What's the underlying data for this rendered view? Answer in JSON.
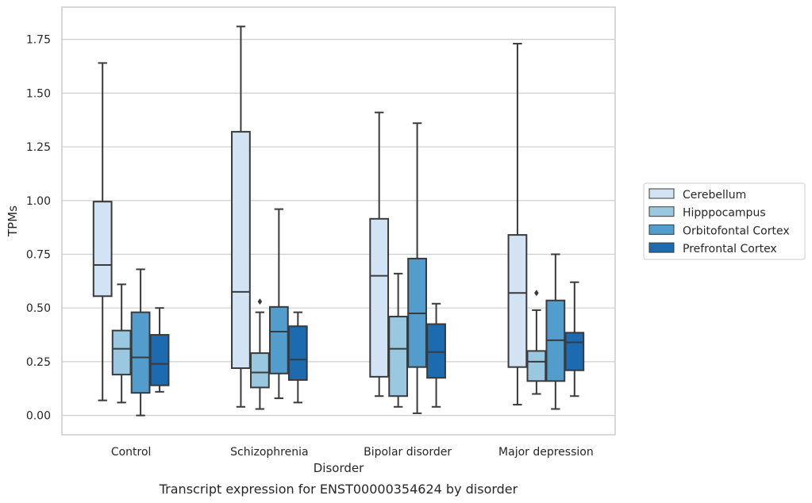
{
  "chart_data": {
    "type": "box",
    "caption": "Transcript expression for ENST00000354624 by disorder",
    "xlabel": "Disorder",
    "ylabel": "TPMs",
    "ylim": [
      -0.09,
      1.9
    ],
    "yticks": [
      "0.00",
      "0.25",
      "0.50",
      "0.75",
      "1.00",
      "1.25",
      "1.50",
      "1.75"
    ],
    "grid": "horizontal",
    "legend_position": "right",
    "categories": [
      "Control",
      "Schizophrenia",
      "Bipolar disorder",
      "Major depression"
    ],
    "series": [
      {
        "name": "Cerebellum",
        "color": "#d2e3f3",
        "boxes": [
          {
            "whislo": 0.07,
            "q1": 0.555,
            "med": 0.7,
            "q3": 0.995,
            "whishi": 1.64,
            "fliers": []
          },
          {
            "whislo": 0.04,
            "q1": 0.22,
            "med": 0.575,
            "q3": 1.32,
            "whishi": 1.81,
            "fliers": []
          },
          {
            "whislo": 0.09,
            "q1": 0.18,
            "med": 0.65,
            "q3": 0.915,
            "whishi": 1.41,
            "fliers": []
          },
          {
            "whislo": 0.05,
            "q1": 0.225,
            "med": 0.57,
            "q3": 0.84,
            "whishi": 1.73,
            "fliers": []
          }
        ]
      },
      {
        "name": "Hipppocampus",
        "color": "#9ac8e0",
        "boxes": [
          {
            "whislo": 0.06,
            "q1": 0.19,
            "med": 0.31,
            "q3": 0.395,
            "whishi": 0.61,
            "fliers": []
          },
          {
            "whislo": 0.03,
            "q1": 0.13,
            "med": 0.2,
            "q3": 0.29,
            "whishi": 0.48,
            "fliers": [
              0.53
            ]
          },
          {
            "whislo": 0.04,
            "q1": 0.09,
            "med": 0.31,
            "q3": 0.46,
            "whishi": 0.66,
            "fliers": []
          },
          {
            "whislo": 0.1,
            "q1": 0.16,
            "med": 0.25,
            "q3": 0.3,
            "whishi": 0.49,
            "fliers": [
              0.57
            ]
          }
        ]
      },
      {
        "name": "Orbitofontal Cortex",
        "color": "#529dcc",
        "boxes": [
          {
            "whislo": 0.0,
            "q1": 0.105,
            "med": 0.27,
            "q3": 0.48,
            "whishi": 0.68,
            "fliers": []
          },
          {
            "whislo": 0.08,
            "q1": 0.195,
            "med": 0.39,
            "q3": 0.505,
            "whishi": 0.96,
            "fliers": []
          },
          {
            "whislo": 0.01,
            "q1": 0.225,
            "med": 0.475,
            "q3": 0.73,
            "whishi": 1.36,
            "fliers": []
          },
          {
            "whislo": 0.03,
            "q1": 0.16,
            "med": 0.35,
            "q3": 0.535,
            "whishi": 0.75,
            "fliers": []
          }
        ]
      },
      {
        "name": "Prefrontal Cortex",
        "color": "#1c6aaf",
        "boxes": [
          {
            "whislo": 0.11,
            "q1": 0.14,
            "med": 0.24,
            "q3": 0.375,
            "whishi": 0.5,
            "fliers": []
          },
          {
            "whislo": 0.06,
            "q1": 0.165,
            "med": 0.26,
            "q3": 0.415,
            "whishi": 0.48,
            "fliers": []
          },
          {
            "whislo": 0.04,
            "q1": 0.175,
            "med": 0.295,
            "q3": 0.425,
            "whishi": 0.52,
            "fliers": []
          },
          {
            "whislo": 0.09,
            "q1": 0.21,
            "med": 0.34,
            "q3": 0.385,
            "whishi": 0.62,
            "fliers": []
          }
        ]
      }
    ]
  }
}
